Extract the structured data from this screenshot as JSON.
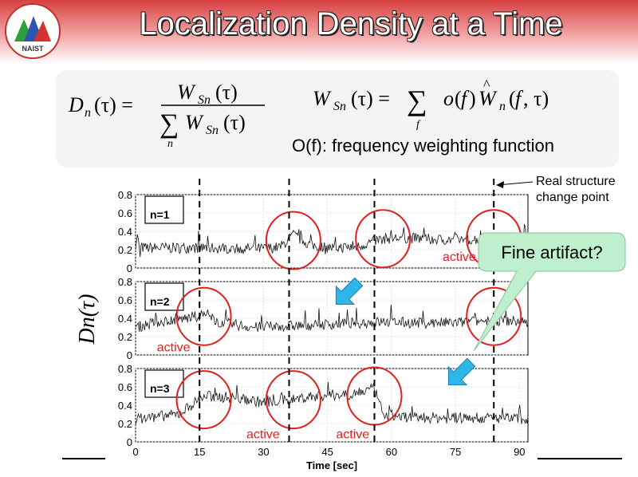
{
  "slide": {
    "title": "Localization Density at a Time",
    "logo_text": "NAIST",
    "weighting_label": "O(f): frequency weighting function",
    "real_structure_label_line1": "Real structure",
    "real_structure_label_line2": "change point",
    "callout": "Fine artifact?",
    "y_axis_label": "Dn(τ)",
    "colors": {
      "accent_red": "#e02020",
      "callout_fill": "#bff0cd",
      "arrow_blue": "#2fb6e8"
    }
  },
  "chart_data": {
    "type": "line",
    "xlabel": "Time [sec]",
    "xticks": [
      0,
      15,
      30,
      45,
      60,
      75,
      90
    ],
    "xlim": [
      0,
      92
    ],
    "ylim": [
      0,
      0.8
    ],
    "yticks": [
      "0",
      "0.2",
      "0.4",
      "0.6",
      "0.8"
    ],
    "change_points": [
      15,
      36,
      56,
      84
    ],
    "panels": [
      {
        "label": "n=1",
        "base_profile": [
          [
            0,
            0.24
          ],
          [
            2,
            0.22
          ],
          [
            15,
            0.22
          ],
          [
            30,
            0.21
          ],
          [
            34,
            0.23
          ],
          [
            37,
            0.36
          ],
          [
            41,
            0.25
          ],
          [
            46,
            0.22
          ],
          [
            52,
            0.23
          ],
          [
            55,
            0.28
          ],
          [
            58,
            0.32
          ],
          [
            64,
            0.33
          ],
          [
            70,
            0.31
          ],
          [
            78,
            0.31
          ],
          [
            86,
            0.33
          ],
          [
            92,
            0.32
          ]
        ],
        "circles": [
          [
            37,
            0.3
          ],
          [
            58,
            0.32
          ],
          [
            84,
            0.32
          ]
        ],
        "active_labels": [
          [
            72,
            0.06,
            "active"
          ]
        ]
      },
      {
        "label": "n=2",
        "base_profile": [
          [
            0,
            0.3
          ],
          [
            5,
            0.36
          ],
          [
            12,
            0.4
          ],
          [
            16,
            0.44
          ],
          [
            20,
            0.35
          ],
          [
            28,
            0.3
          ],
          [
            38,
            0.32
          ],
          [
            48,
            0.34
          ],
          [
            58,
            0.36
          ],
          [
            66,
            0.35
          ],
          [
            75,
            0.35
          ],
          [
            84,
            0.38
          ],
          [
            92,
            0.36
          ]
        ],
        "circles": [
          [
            16,
            0.42
          ],
          [
            84,
            0.42
          ]
        ],
        "active_labels": [
          [
            5,
            0.02,
            "active"
          ]
        ]
      },
      {
        "label": "n=3",
        "base_profile": [
          [
            0,
            0.25
          ],
          [
            10,
            0.3
          ],
          [
            16,
            0.5
          ],
          [
            24,
            0.48
          ],
          [
            30,
            0.43
          ],
          [
            36,
            0.46
          ],
          [
            42,
            0.5
          ],
          [
            50,
            0.52
          ],
          [
            56,
            0.58
          ],
          [
            58,
            0.3
          ],
          [
            64,
            0.27
          ],
          [
            74,
            0.26
          ],
          [
            84,
            0.26
          ],
          [
            92,
            0.25
          ]
        ],
        "circles": [
          [
            16,
            0.46
          ],
          [
            37,
            0.46
          ],
          [
            56,
            0.5
          ]
        ],
        "active_labels": [
          [
            26,
            0.02,
            "active"
          ],
          [
            47,
            0.02,
            "active"
          ]
        ]
      }
    ]
  }
}
